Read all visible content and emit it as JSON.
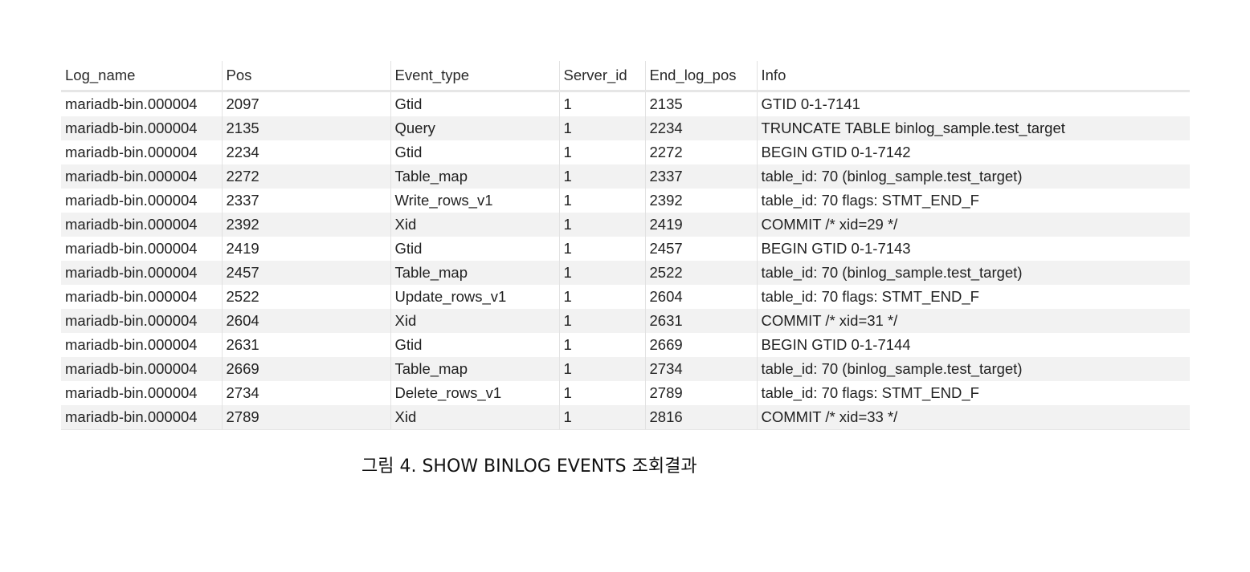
{
  "table": {
    "columns": [
      "Log_name",
      "Pos",
      "Event_type",
      "Server_id",
      "End_log_pos",
      "Info"
    ],
    "rows": [
      [
        "mariadb-bin.000004",
        "2097",
        "Gtid",
        "1",
        "2135",
        "GTID 0-1-7141"
      ],
      [
        "mariadb-bin.000004",
        "2135",
        "Query",
        "1",
        "2234",
        "TRUNCATE TABLE binlog_sample.test_target"
      ],
      [
        "mariadb-bin.000004",
        "2234",
        "Gtid",
        "1",
        "2272",
        "BEGIN GTID 0-1-7142"
      ],
      [
        "mariadb-bin.000004",
        "2272",
        "Table_map",
        "1",
        "2337",
        "table_id: 70 (binlog_sample.test_target)"
      ],
      [
        "mariadb-bin.000004",
        "2337",
        "Write_rows_v1",
        "1",
        "2392",
        "table_id: 70 flags: STMT_END_F"
      ],
      [
        "mariadb-bin.000004",
        "2392",
        "Xid",
        "1",
        "2419",
        "COMMIT /* xid=29 */"
      ],
      [
        "mariadb-bin.000004",
        "2419",
        "Gtid",
        "1",
        "2457",
        "BEGIN GTID 0-1-7143"
      ],
      [
        "mariadb-bin.000004",
        "2457",
        "Table_map",
        "1",
        "2522",
        "table_id: 70 (binlog_sample.test_target)"
      ],
      [
        "mariadb-bin.000004",
        "2522",
        "Update_rows_v1",
        "1",
        "2604",
        "table_id: 70 flags: STMT_END_F"
      ],
      [
        "mariadb-bin.000004",
        "2604",
        "Xid",
        "1",
        "2631",
        "COMMIT /* xid=31 */"
      ],
      [
        "mariadb-bin.000004",
        "2631",
        "Gtid",
        "1",
        "2669",
        "BEGIN GTID 0-1-7144"
      ],
      [
        "mariadb-bin.000004",
        "2669",
        "Table_map",
        "1",
        "2734",
        "table_id: 70 (binlog_sample.test_target)"
      ],
      [
        "mariadb-bin.000004",
        "2734",
        "Delete_rows_v1",
        "1",
        "2789",
        "table_id: 70 flags: STMT_END_F"
      ],
      [
        "mariadb-bin.000004",
        "2789",
        "Xid",
        "1",
        "2816",
        "COMMIT /* xid=33 */"
      ]
    ]
  },
  "caption": "그림 4. SHOW BINLOG EVENTS 조회결과",
  "colors": {
    "stripe": "#f2f2f2",
    "grid": "#e2e2e2",
    "text": "#222222"
  }
}
